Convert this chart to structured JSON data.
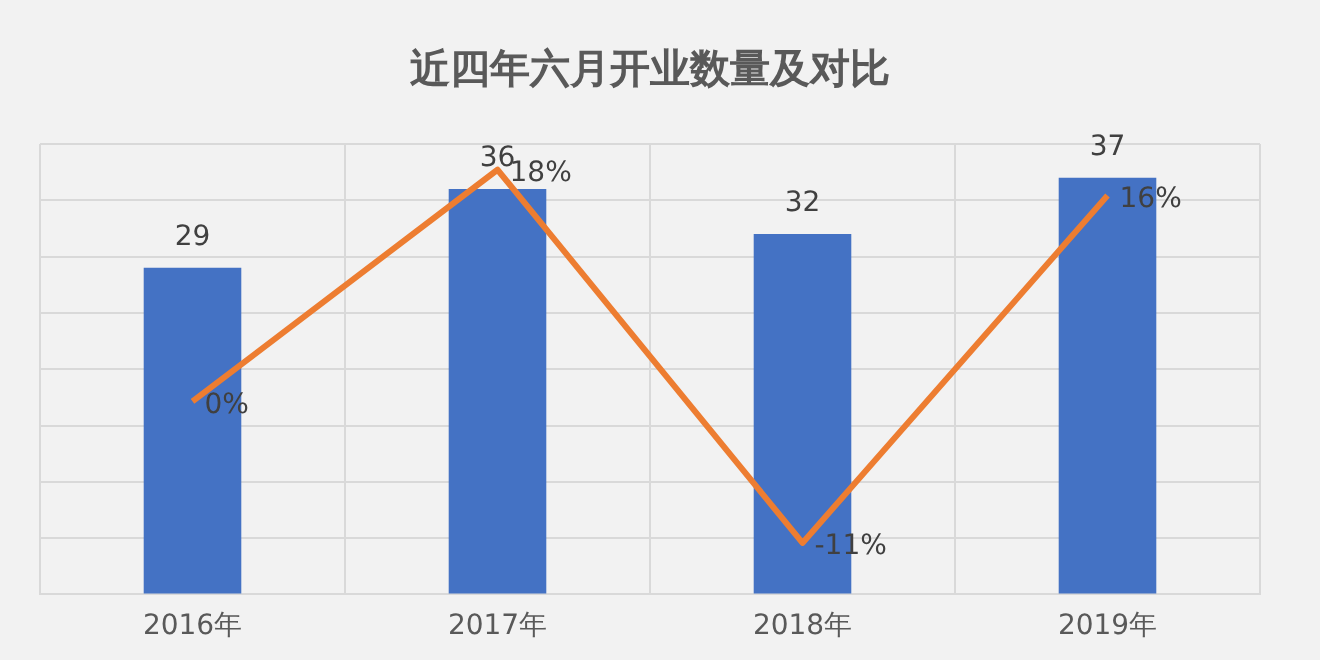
{
  "chart_data": {
    "type": "bar",
    "title": "近四年六月开业数量及对比",
    "categories": [
      "2016年",
      "2017年",
      "2018年",
      "2019年"
    ],
    "series": [
      {
        "color": "#4472c4",
        "values": [
          29,
          36,
          32,
          37
        ],
        "value_labels": [
          "29",
          "36",
          "32",
          "37"
        ]
      },
      {
        "type": "line",
        "axis": "y2",
        "color": "#ed7d31",
        "values": [
          0,
          18,
          -11,
          16
        ],
        "value_labels": [
          "0%",
          "18%",
          "-11%",
          "16%"
        ]
      }
    ],
    "ylim": [
      0,
      40
    ],
    "yticks": [
      {
        "value": 0,
        "label": null
      },
      {
        "value": 5,
        "label": null
      },
      {
        "value": 10,
        "label": null
      },
      {
        "value": 15,
        "label": null
      },
      {
        "value": 20,
        "label": null
      },
      {
        "value": 25,
        "label": null
      },
      {
        "value": 30,
        "label": null
      },
      {
        "value": 35,
        "label": null
      },
      {
        "value": 40,
        "label": null
      }
    ],
    "y2lim": [
      -15,
      20
    ],
    "tick_labels": "x",
    "grid": true,
    "legend": false,
    "marker": "none",
    "line_style": "solid"
  }
}
